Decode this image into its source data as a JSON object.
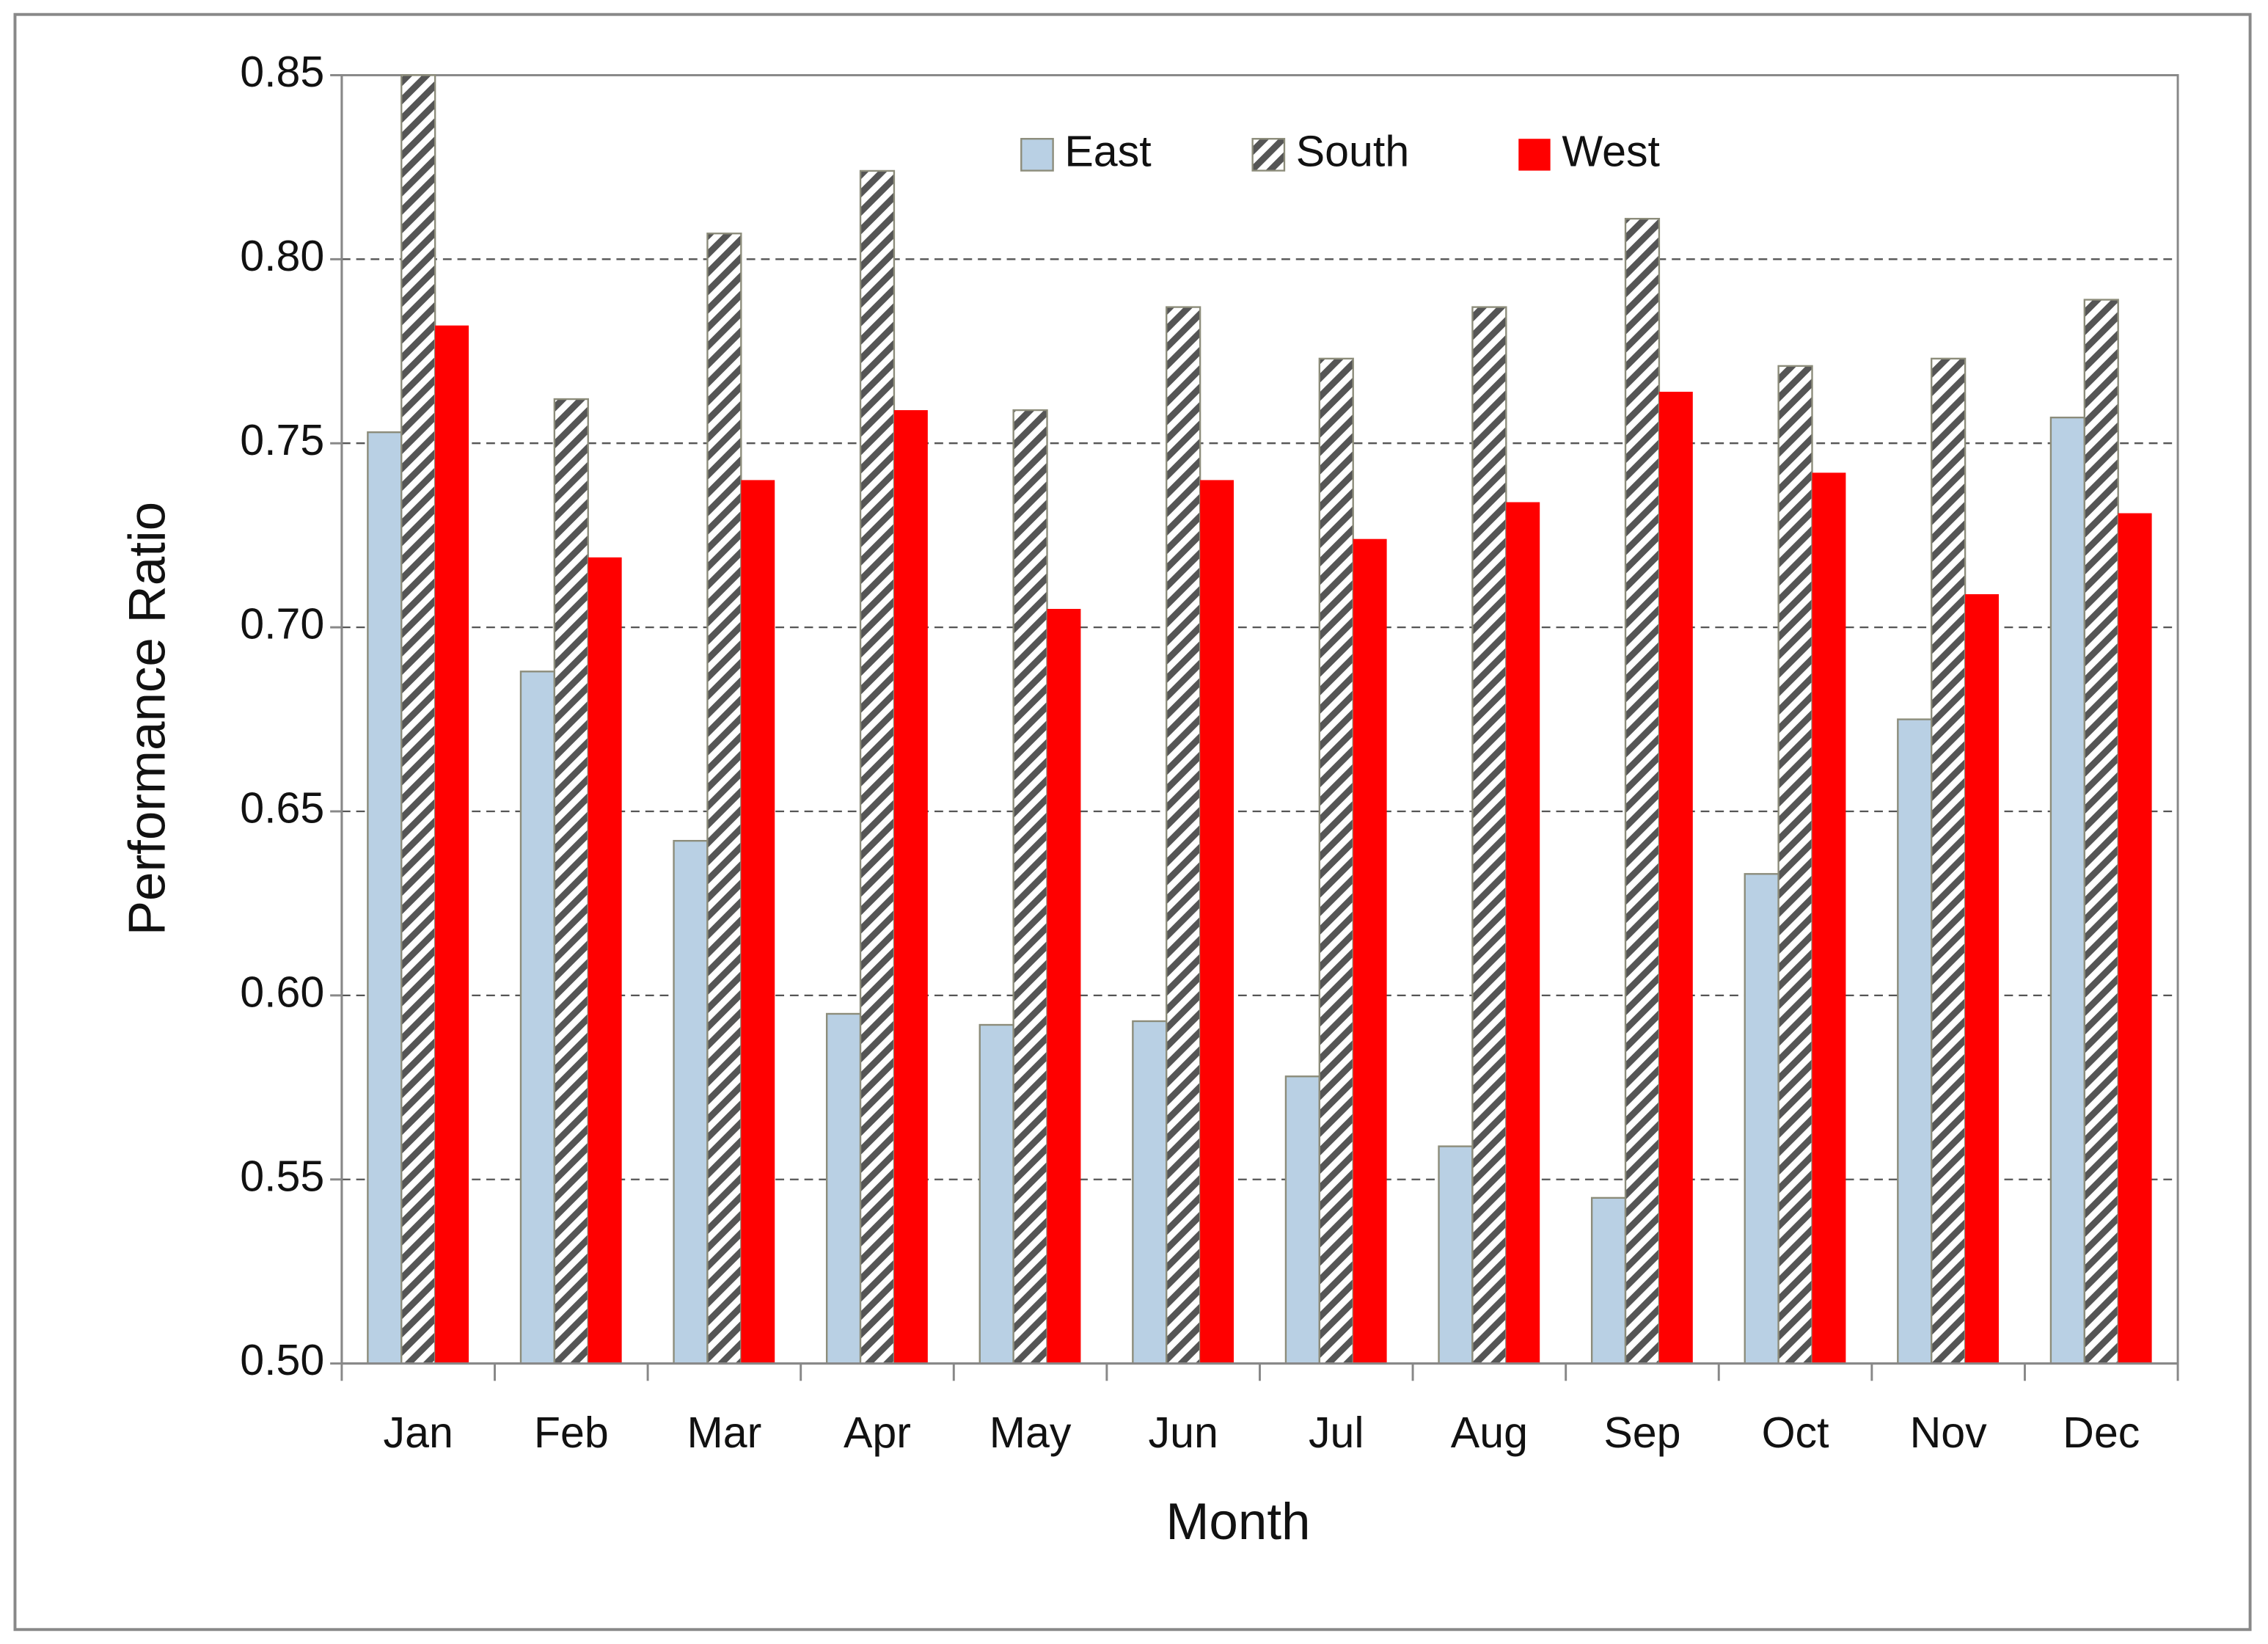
{
  "chart_data": {
    "type": "bar",
    "x_label": "Month",
    "y_label": "Performance Ratio",
    "categories": [
      "Jan",
      "Feb",
      "Mar",
      "Apr",
      "May",
      "Jun",
      "Jul",
      "Aug",
      "Sep",
      "Oct",
      "Nov",
      "Dec"
    ],
    "series": [
      {
        "name": "East",
        "color": "#b9d0e4",
        "values": [
          0.753,
          0.688,
          0.642,
          0.595,
          0.592,
          0.593,
          0.578,
          0.559,
          0.545,
          0.633,
          0.675,
          0.757
        ]
      },
      {
        "name": "South",
        "color": "#ffffff",
        "pattern": "hatch",
        "values": [
          0.85,
          0.762,
          0.807,
          0.824,
          0.759,
          0.787,
          0.773,
          0.787,
          0.811,
          0.771,
          0.773,
          0.789
        ]
      },
      {
        "name": "West",
        "color": "#ff0000",
        "values": [
          0.782,
          0.719,
          0.74,
          0.759,
          0.705,
          0.74,
          0.724,
          0.734,
          0.764,
          0.742,
          0.709,
          0.731
        ]
      }
    ],
    "ylim": [
      0.5,
      0.85
    ],
    "yticks": [
      {
        "value": 0.5,
        "label": "0.50"
      },
      0.55,
      {
        "value": 0.6,
        "label": "0.60"
      },
      0.65,
      {
        "value": 0.7,
        "label": "0.70"
      },
      0.75,
      {
        "value": 0.8,
        "label": "0.80"
      },
      0.85
    ],
    "grid": true,
    "legend": "top"
  }
}
